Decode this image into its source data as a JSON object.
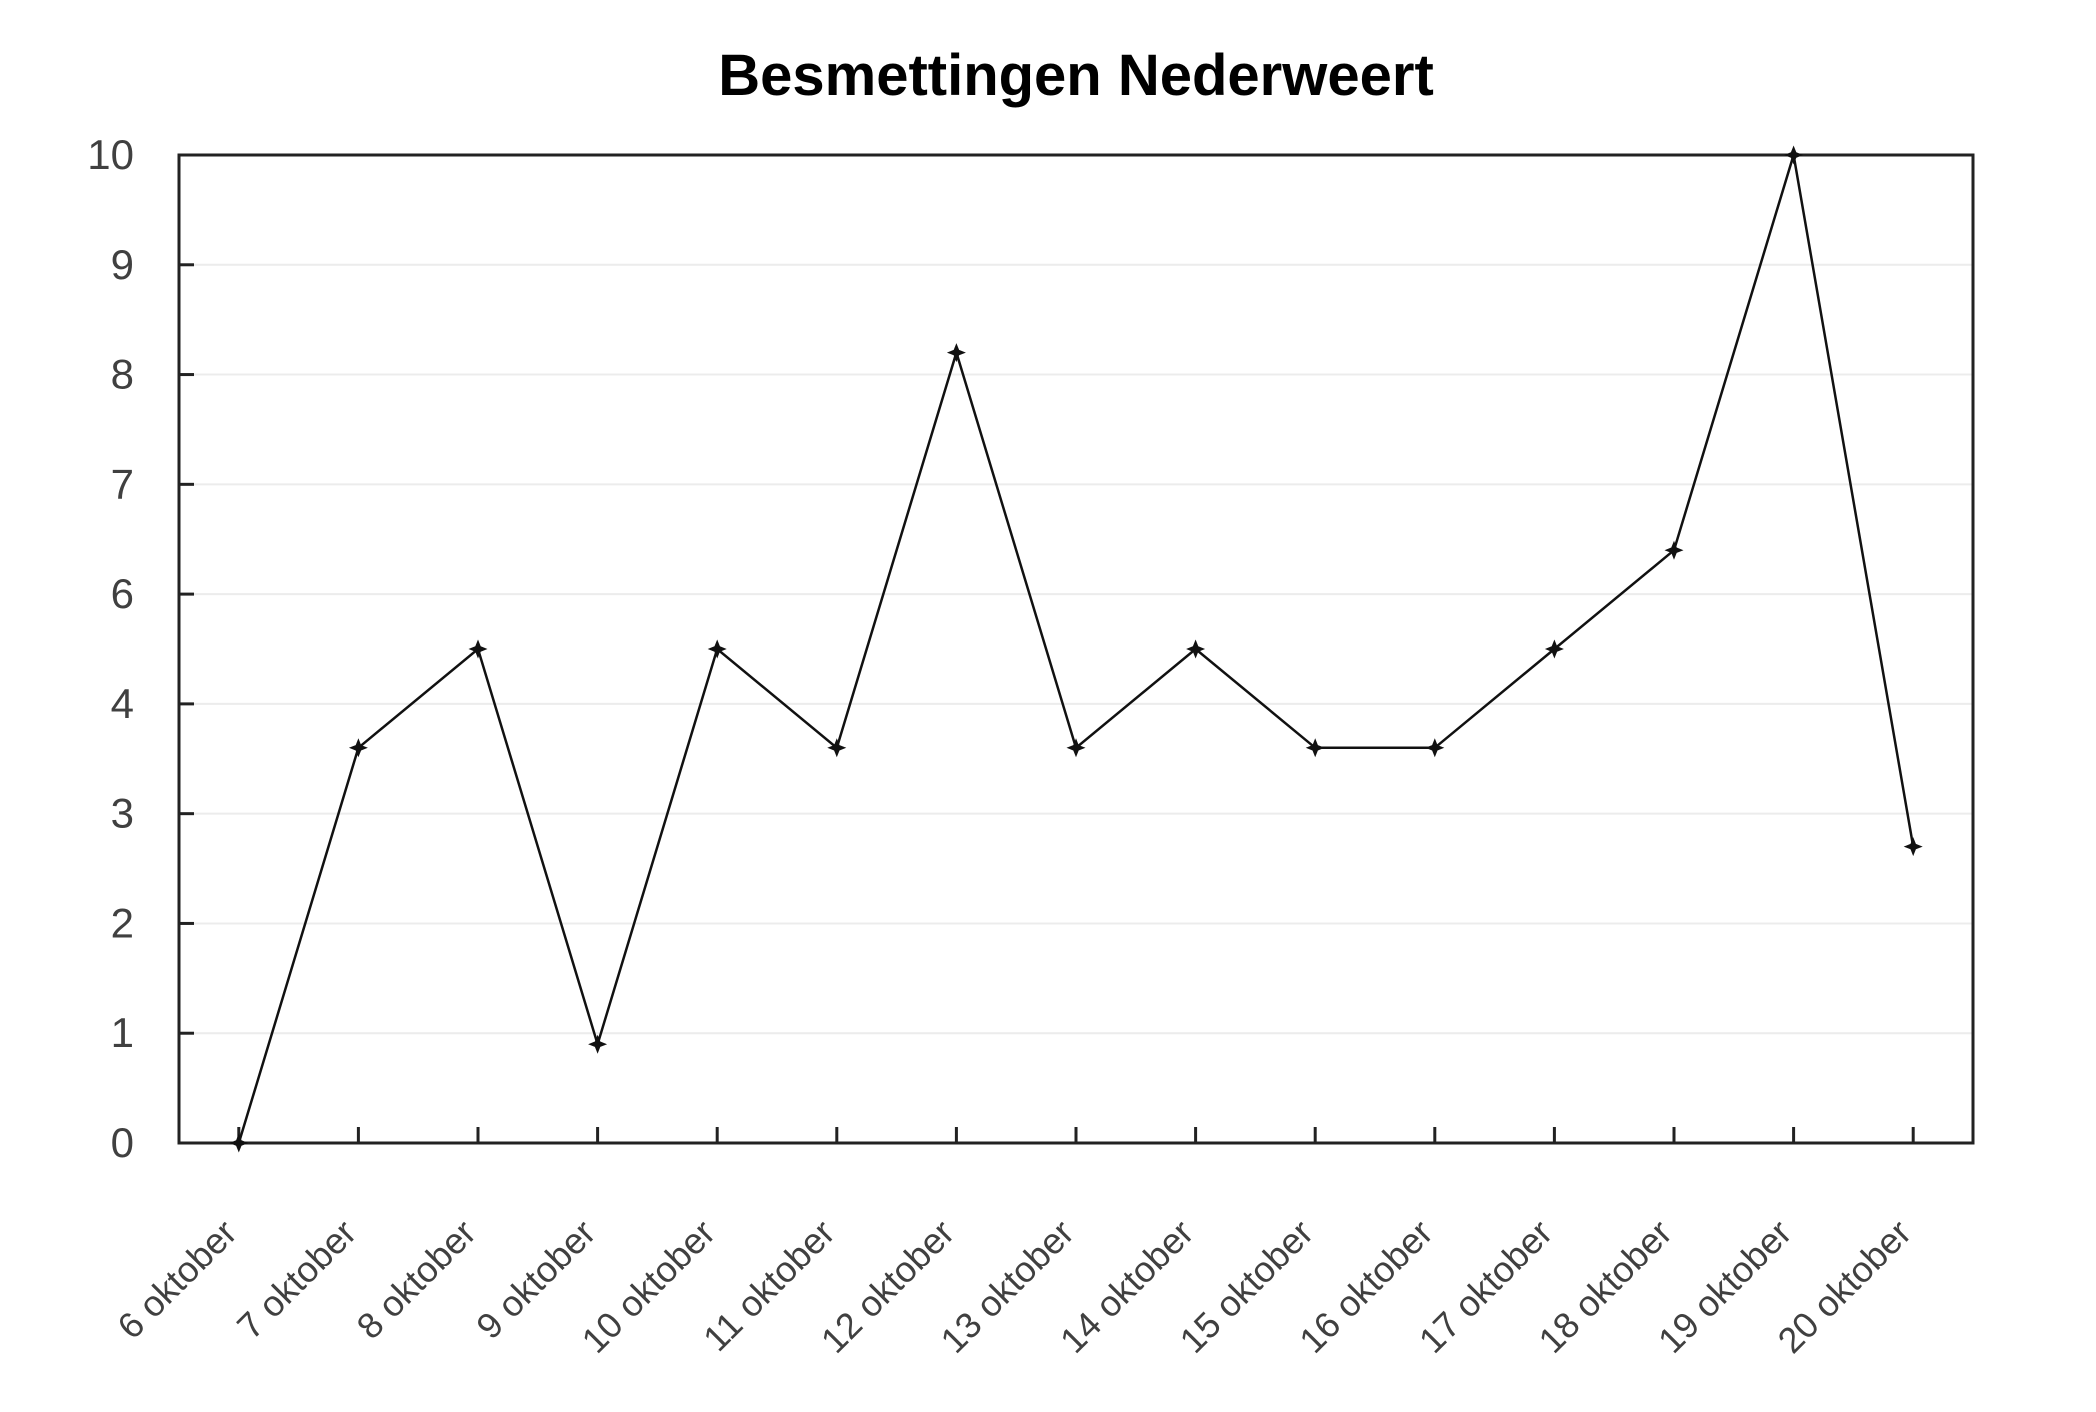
{
  "chart_data": {
    "type": "line",
    "title": "Besmettingen Nederweert",
    "categories": [
      "6 oktober",
      "7 oktober",
      "8 oktober",
      "9 oktober",
      "10 oktober",
      "11 oktober",
      "12 oktober",
      "13 oktober",
      "14 oktober",
      "15 oktober",
      "16 oktober",
      "17 oktober",
      "18 oktober",
      "19 oktober",
      "20 oktober"
    ],
    "values": [
      0,
      4,
      5,
      1,
      5,
      4,
      8,
      4,
      5,
      4,
      4,
      5,
      6,
      10,
      3
    ],
    "xlabel": "",
    "ylabel": "",
    "ylim": [
      0,
      10
    ],
    "grid": true,
    "legend": "none",
    "y_axis": {
      "tick_labels_top_to_bottom": [
        "10",
        "9",
        "8",
        "7",
        "6",
        "4",
        "3",
        "2",
        "1",
        "0"
      ],
      "note": "ten tick labels evenly spaced over nine intervals; the label 5 is skipped, so gridlines are offset from the linear positions of the plotted values"
    },
    "x_axis": {
      "tick_label_rotation_deg": 45,
      "ticks_inward": true
    },
    "styles": {
      "line_color": "#111111",
      "marker": "four-point-star",
      "marker_color": "#111111",
      "gridline_color": "#ececec",
      "axis_color": "#222222",
      "tick_label_color": "#404040",
      "title_color": "#000000",
      "background": "#ffffff"
    }
  }
}
